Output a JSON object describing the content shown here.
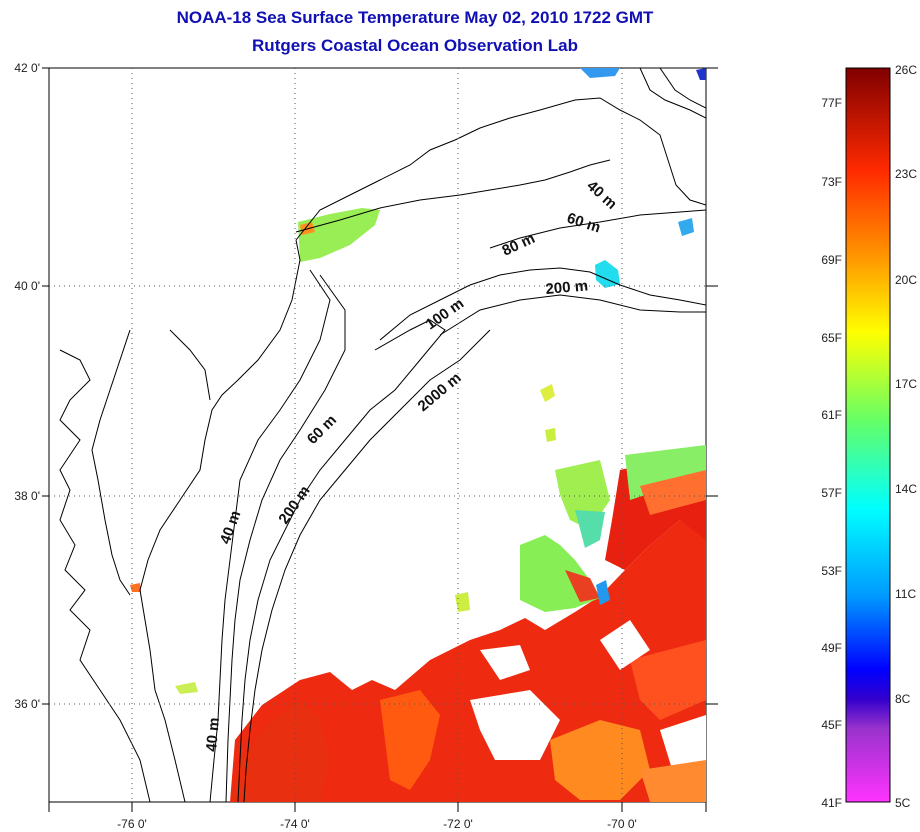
{
  "title": {
    "line1": "NOAA-18 Sea Surface Temperature May 02, 2010 1722 GMT",
    "line2": "Rutgers Coastal Ocean Observation Lab"
  },
  "axes": {
    "lat_ticks": [
      "42 0'",
      "40 0'",
      "38 0'",
      "36 0'"
    ],
    "lon_ticks": [
      "-76 0'",
      "-74 0'",
      "-72 0'",
      "-70 0'"
    ]
  },
  "contours": [
    {
      "label": "40 m"
    },
    {
      "label": "60 m"
    },
    {
      "label": "80 m"
    },
    {
      "label": "200 m"
    },
    {
      "label": "100 m"
    },
    {
      "label": "2000 m"
    },
    {
      "label": "60 m"
    },
    {
      "label": "200 m"
    },
    {
      "label": "40 m"
    },
    {
      "label": "40 m"
    }
  ],
  "colorbar": {
    "fahrenheit": [
      "77F",
      "73F",
      "69F",
      "65F",
      "61F",
      "57F",
      "53F",
      "49F",
      "45F",
      "41F"
    ],
    "celsius": [
      "26C",
      "23C",
      "20C",
      "17C",
      "14C",
      "11C",
      "8C",
      "5C"
    ]
  }
}
